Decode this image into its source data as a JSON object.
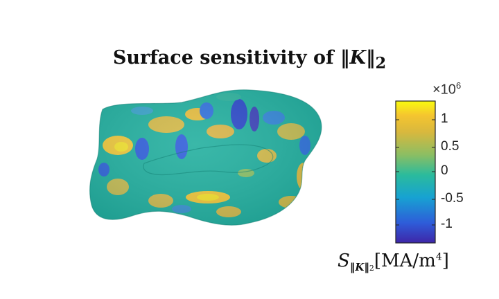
{
  "figure": {
    "title_prefix": "Surface sensitivity of ",
    "title_math": "‖K‖",
    "title_sub": "2"
  },
  "colorbar": {
    "scale_prefix": "×10",
    "scale_exponent": "6",
    "ticks": [
      {
        "label": "1",
        "value": 1.0
      },
      {
        "label": "0.5",
        "value": 0.5
      },
      {
        "label": "0",
        "value": 0.0
      },
      {
        "label": "-0.5",
        "value": -0.5
      },
      {
        "label": "-1",
        "value": -1.0
      }
    ],
    "range": [
      -1.25,
      1.25
    ],
    "colormap": [
      "#3e26a8",
      "#2e5cd9",
      "#17a2d2",
      "#2bbb9c",
      "#8bbe63",
      "#d8b83e",
      "#f5c52f",
      "#f9fb0e"
    ],
    "label_symbol": "S",
    "label_sub": "‖K‖",
    "label_sub2": "2",
    "label_units": "[MA/m",
    "label_units_exp": "4",
    "label_units_close": "]"
  },
  "surface": {
    "base_color": "#20ae9c"
  }
}
